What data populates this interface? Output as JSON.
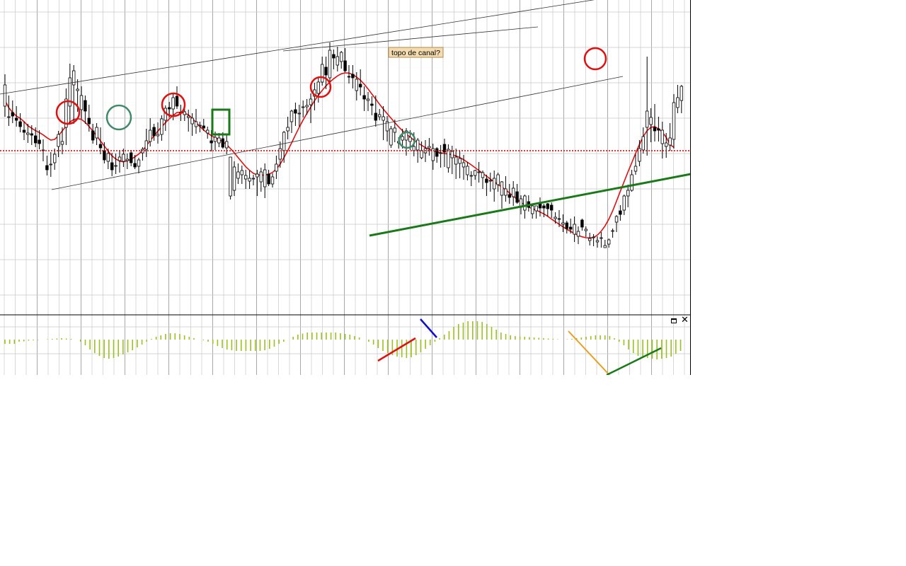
{
  "annotation_label": "topo de canal?",
  "panel_controls": {
    "maximize": "maximize",
    "close": "✕"
  },
  "colors": {
    "background": "#ffffff",
    "grid": "#c8c8c8",
    "candle": "#000000",
    "moving_average": "#e01010",
    "support_line": "#1a7a1a",
    "channel_line": "#333333",
    "macd_histogram": "#99c21a",
    "callout_fill": "#f5dcb0",
    "callout_border": "#b08a50"
  },
  "chart_data": [
    {
      "type": "candlestick",
      "title": "",
      "ylim": [
        0,
        530
      ],
      "candles": [
        [
          200,
          185,
          245,
          230
        ],
        [
          185,
          172,
          215,
          185
        ],
        [
          191,
          176,
          208,
          186
        ],
        [
          183,
          171,
          200,
          180
        ],
        [
          178,
          163,
          190,
          171
        ],
        [
          166,
          152,
          178,
          163
        ],
        [
          160,
          148,
          175,
          162
        ],
        [
          161,
          145,
          173,
          159
        ],
        [
          158,
          142,
          170,
          148
        ],
        [
          152,
          139,
          166,
          147
        ],
        [
          138,
          122,
          153,
          138
        ],
        [
          116,
          102,
          130,
          110
        ],
        [
          118,
          100,
          135,
          118
        ],
        [
          120,
          110,
          140,
          132
        ],
        [
          143,
          128,
          165,
          160
        ],
        [
          146,
          132,
          170,
          150
        ],
        [
          170,
          145,
          225,
          210
        ],
        [
          200,
          175,
          260,
          240
        ],
        [
          230,
          175,
          258,
          250
        ],
        [
          222,
          192,
          238,
          224
        ],
        [
          195,
          182,
          228,
          215
        ],
        [
          208,
          175,
          215,
          193
        ],
        [
          183,
          164,
          202,
          175
        ],
        [
          165,
          147,
          175,
          152
        ],
        [
          155,
          145,
          176,
          170
        ],
        [
          146,
          132,
          170,
          141
        ],
        [
          137,
          119,
          149,
          124
        ],
        [
          122,
          111,
          140,
          133
        ],
        [
          120,
          101,
          134,
          110
        ],
        [
          115,
          104,
          133,
          116
        ],
        [
          123,
          106,
          137,
          128
        ],
        [
          122,
          114,
          140,
          132
        ],
        [
          123,
          111,
          133,
          125
        ],
        [
          134,
          115,
          138,
          120
        ],
        [
          119,
          111,
          131,
          114
        ],
        [
          115,
          105,
          127,
          124
        ],
        [
          134,
          123,
          142,
          139
        ],
        [
          139,
          128,
          168,
          151
        ],
        [
          150,
          143,
          183,
          166
        ],
        [
          170,
          151,
          175,
          158
        ],
        [
          158,
          147,
          177,
          160
        ],
        [
          160,
          151,
          187,
          182
        ],
        [
          180,
          165,
          201,
          197
        ],
        [
          198,
          184,
          206,
          196
        ],
        [
          196,
          180,
          217,
          212
        ],
        [
          214,
          196,
          228,
          200
        ],
        [
          191,
          179,
          202,
          190
        ],
        [
          188,
          179,
          203,
          192
        ],
        [
          184,
          164,
          195,
          186
        ],
        [
          175,
          158,
          190,
          183
        ],
        [
          171,
          161,
          196,
          178
        ],
        [
          172,
          163,
          178,
          173
        ],
        [
          172,
          165,
          182,
          169
        ],
        [
          162,
          154,
          171,
          166
        ],
        [
          151,
          136,
          166,
          148
        ],
        [
          150,
          138,
          164,
          156
        ],
        [
          148,
          142,
          162,
          155
        ],
        [
          154,
          140,
          163,
          142
        ],
        [
          141,
          132,
          161,
          150
        ],
        [
          73,
          68,
          128,
          128
        ],
        [
          81,
          73,
          122,
          114
        ],
        [
          98,
          90,
          119,
          107
        ],
        [
          103,
          90,
          116,
          109
        ],
        [
          97,
          83,
          110,
          102
        ],
        [
          94,
          83,
          109,
          98
        ],
        [
          97,
          88,
          103,
          98
        ],
        [
          100,
          73,
          110,
          104
        ],
        [
          93,
          79,
          113,
          107
        ],
        [
          86,
          70,
          119,
          110
        ],
        [
          104,
          87,
          110,
          90
        ],
        [
          90,
          85,
          105,
          100
        ],
        [
          108,
          97,
          130,
          118
        ],
        [
          125,
          113,
          150,
          140
        ],
        [
          137,
          120,
          165,
          163
        ],
        [
          165,
          153,
          185,
          170
        ],
        [
          178,
          162,
          195,
          193
        ],
        [
          195,
          172,
          205,
          190
        ],
        [
          190,
          171,
          202,
          190
        ],
        [
          198,
          184,
          208,
          199
        ],
        [
          199,
          188,
          210,
          201
        ],
        [
          202,
          176,
          218,
          210
        ],
        [
          214,
          194,
          233,
          223
        ],
        [
          218,
          205,
          241,
          234
        ],
        [
          234,
          229,
          270,
          259
        ],
        [
          255,
          224,
          270,
          244
        ],
        [
          240,
          226,
          290,
          279
        ],
        [
          273,
          252,
          280,
          268
        ],
        [
          258,
          249,
          284,
          270
        ],
        [
          263,
          253,
          278,
          276
        ],
        [
          264,
          248,
          282,
          250
        ],
        [
          242,
          232,
          258,
          241
        ],
        [
          245,
          225,
          258,
          240
        ],
        [
          222,
          208,
          248,
          238
        ],
        [
          231,
          215,
          252,
          227
        ],
        [
          215,
          193,
          228,
          210
        ],
        [
          208,
          193,
          220,
          210
        ],
        [
          203,
          187,
          214,
          201
        ],
        [
          190,
          171,
          215,
          180
        ],
        [
          185,
          180,
          196,
          188
        ],
        [
          180,
          152,
          200,
          185
        ],
        [
          165,
          150,
          186,
          178
        ],
        [
          145,
          141,
          172,
          168
        ],
        [
          163,
          149,
          181,
          169
        ],
        [
          148,
          140,
          156,
          150
        ],
        [
          152,
          140,
          168,
          157
        ],
        [
          152,
          130,
          169,
          165
        ],
        [
          150,
          138,
          166,
          156
        ],
        [
          137,
          129,
          163,
          143
        ],
        [
          138,
          120,
          155,
          152
        ],
        [
          127,
          125,
          150,
          137
        ],
        [
          134,
          121,
          152,
          140
        ],
        [
          141,
          130,
          155,
          143
        ],
        [
          123,
          110,
          147,
          140
        ],
        [
          140,
          120,
          142,
          129
        ],
        [
          134,
          113,
          145,
          134
        ],
        [
          146,
          114,
          154,
          135
        ],
        [
          113,
          106,
          146,
          139
        ],
        [
          127,
          104,
          144,
          136
        ],
        [
          118,
          97,
          140,
          128
        ],
        [
          119,
          98,
          137,
          126
        ],
        [
          114,
          96,
          131,
          120
        ],
        [
          103,
          95,
          121,
          115
        ],
        [
          102,
          87,
          108,
          102
        ],
        [
          102,
          96,
          110,
          109
        ],
        [
          106,
          92,
          121,
          107
        ],
        [
          99,
          83,
          109,
          106
        ],
        [
          97,
          73,
          103,
          92
        ],
        [
          95,
          79,
          106,
          95
        ],
        [
          83,
          65,
          109,
          98
        ],
        [
          89,
          79,
          106,
          103
        ],
        [
          74,
          55,
          94,
          93
        ],
        [
          74,
          65,
          101,
          83
        ],
        [
          75,
          62,
          90,
          71
        ],
        [
          72,
          59,
          94,
          84
        ],
        [
          79,
          62,
          90,
          64
        ],
        [
          57,
          47,
          74,
          69
        ],
        [
          53,
          41,
          75,
          73
        ],
        [
          65,
          51,
          74,
          57
        ],
        [
          48,
          41,
          60,
          59
        ],
        [
          52,
          41,
          59,
          59
        ],
        [
          63,
          44,
          71,
          56
        ],
        [
          59,
          43,
          62,
          56
        ],
        [
          62,
          44,
          63,
          55
        ],
        [
          60,
          42,
          64,
          53
        ],
        [
          41,
          34,
          50,
          43
        ],
        [
          41,
          29,
          53,
          40
        ],
        [
          33,
          22,
          47,
          35
        ],
        [
          35,
          20,
          38,
          27
        ],
        [
          29,
          20,
          41,
          26
        ],
        [
          19,
          8,
          44,
          33
        ],
        [
          16,
          5,
          30,
          23
        ],
        [
          39,
          24,
          41,
          29
        ],
        [
          24,
          15,
          30,
          26
        ],
        [
          10,
          3,
          21,
          13
        ],
        [
          15,
          2,
          19,
          15
        ],
        [
          8,
          0,
          16,
          10
        ],
        [
          13,
          0,
          22,
          14
        ],
        [
          0,
          0,
          11,
          3
        ],
        [
          5,
          0,
          13,
          11
        ],
        [
          23,
          14,
          27,
          24
        ],
        [
          36,
          22,
          46,
          44
        ],
        [
          52,
          38,
          60,
          47
        ],
        [
          53,
          46,
          75,
          73
        ],
        [
          73,
          57,
          89,
          81
        ],
        [
          81,
          79,
          110,
          103
        ],
        [
          108,
          103,
          132,
          115
        ],
        [
          122,
          115,
          152,
          140
        ],
        [
          138,
          133,
          170,
          157
        ],
        [
          170,
          130,
          270,
          193
        ],
        [
          174,
          149,
          197,
          184
        ],
        [
          170,
          150,
          203,
          165
        ],
        [
          168,
          150,
          185,
          166
        ],
        [
          147,
          126,
          178,
          166
        ],
        [
          143,
          127,
          162,
          148
        ],
        [
          145,
          137,
          176,
          155
        ],
        [
          153,
          140,
          217,
          205
        ],
        [
          198,
          190,
          230,
          212
        ],
        [
          208,
          190,
          230,
          228
        ]
      ],
      "moving_average": [
        208.3,
        197.7,
        191.0,
        186.0,
        182.7,
        178.0,
        172.3,
        168.7,
        165.3,
        162.7,
        159.3,
        155.3,
        152.0,
        153.0,
        158.3,
        165.0,
        171.7,
        177.7,
        181.0,
        182.3,
        181.3,
        177.0,
        171.3,
        164.7,
        158.0,
        150.7,
        143.7,
        136.3,
        129.7,
        125.3,
        122.3,
        121.3,
        122.7,
        125.0,
        128.3,
        132.3,
        137.3,
        144.0,
        151.3,
        158.0,
        164.7,
        170.7,
        176.7,
        182.0,
        187.0,
        191.0,
        191.3,
        190.0,
        187.7,
        182.7,
        177.0,
        171.3,
        166.0,
        162.0,
        158.3,
        155.3,
        152.7,
        149.7,
        145.7,
        140.0,
        134.0,
        127.3,
        120.7,
        114.3,
        109.3,
        105.0,
        103.0,
        102.3,
        102.7,
        103.7,
        106.3,
        111.0,
        118.0,
        127.3,
        137.3,
        148.0,
        159.3,
        170.3,
        180.3,
        189.7,
        198.7,
        207.7,
        215.3,
        222.3,
        228.7,
        234.0,
        238.7,
        242.7,
        245.7,
        247.0,
        246.7,
        244.7,
        241.0,
        236.7,
        231.0,
        224.3,
        217.0,
        210.0,
        202.7,
        195.7,
        189.3,
        183.0,
        176.7,
        170.7,
        165.3,
        160.7,
        156.0,
        152.0,
        148.0,
        144.7,
        141.3,
        139.0,
        137.0,
        135.3,
        134.0,
        133.0,
        132.3,
        131.3,
        129.7,
        127.3,
        124.3,
        120.7,
        117.0,
        113.0,
        109.0,
        105.0,
        101.0,
        97.0,
        93.0,
        89.3,
        85.7,
        81.7,
        77.3,
        72.7,
        68.3,
        64.0,
        60.3,
        57.3,
        55.0,
        53.0,
        50.3,
        47.7,
        44.3,
        40.3,
        36.7,
        33.0,
        29.3,
        26.0,
        23.0,
        20.0,
        17.3,
        15.3,
        14.0,
        13.7,
        14.3,
        17.7,
        23.3,
        30.7,
        40.3,
        52.0,
        65.7,
        79.7,
        93.3,
        107.0,
        120.0,
        133.3,
        146.0,
        157.0,
        165.3,
        170.0,
        171.0,
        168.0,
        163.3,
        156.0,
        145.7,
        141.7
      ]
    },
    {
      "type": "bar",
      "title": "",
      "ylim": [
        -30,
        30
      ],
      "values": [
        -6.0,
        -6.0,
        -6.0,
        -3.0,
        -2.5,
        -1.5,
        -1.0,
        -0.5,
        0.0,
        0.5,
        1.0,
        1.5,
        2.0,
        1.5,
        1.0,
        0.0,
        -3.0,
        -8.0,
        -14.0,
        -19.0,
        -23.0,
        -26.0,
        -27.0,
        -26.0,
        -24.0,
        -21.0,
        -18.0,
        -15.0,
        -11.0,
        -7.0,
        -3.0,
        1.0,
        4.0,
        6.0,
        8.0,
        9.0,
        9.0,
        8.0,
        6.0,
        4.0,
        2.0,
        0.0,
        -1.0,
        -3.0,
        -6.0,
        -9.0,
        -12.0,
        -14.0,
        -15.0,
        -16.0,
        -16.0,
        -16.0,
        -16.0,
        -16.0,
        -16.0,
        -15.0,
        -13.0,
        -10.0,
        -6.0,
        -3.0,
        0.0,
        4.0,
        7.0,
        8.5,
        10.0,
        10.0,
        10.0,
        10.0,
        10.0,
        10.0,
        10.0,
        9.0,
        8.0,
        7.0,
        5.0,
        3.0,
        0.0,
        -3.0,
        -7.0,
        -12.0,
        -16.0,
        -19.0,
        -22.0,
        -24.0,
        -25.0,
        -26.0,
        -25.0,
        -22.0,
        -18.0,
        -13.0,
        -8.0,
        -3.0,
        2.0,
        7.0,
        12.0,
        18.0,
        22.0,
        24.0,
        26.0,
        26.0,
        26.0,
        25.0,
        22.0,
        18.0,
        14.0,
        10.0,
        8.0,
        6.0,
        5.0,
        4.5,
        4.0,
        3.5,
        3.0,
        2.5,
        2.0,
        1.5,
        1.0,
        0.5,
        0.0,
        0.5,
        1.0,
        2.0,
        3.0,
        4.0,
        5.0,
        6.0,
        6.0,
        6.0,
        5.0,
        2.0,
        -3.0,
        -8.0,
        -14.0,
        -19.0,
        -23.0,
        -25.0,
        -26.0,
        -27.0,
        -28.0,
        -27.0,
        -26.0,
        -24.0,
        -20.0,
        -16.0
      ]
    }
  ]
}
